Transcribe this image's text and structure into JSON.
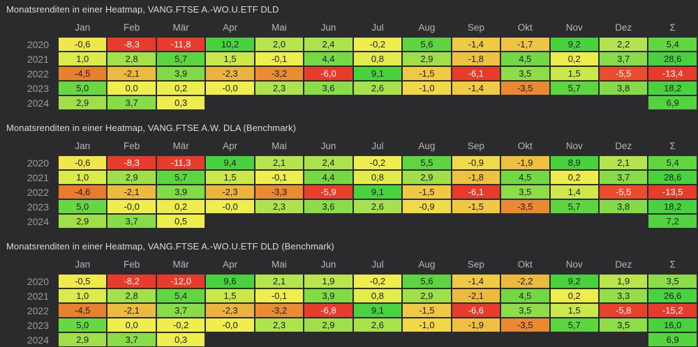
{
  "page": {
    "background": "#2b2b2d",
    "title_color": "#d9dbdd",
    "header_color": "#b4b7ba",
    "year_label_color": "#9b9da0",
    "cell_text_dark": "#1c1c1c",
    "cell_text_light": "#ffffff"
  },
  "color_scale": {
    "stops": [
      {
        "v": -6.0,
        "color": "#e73b2b"
      },
      {
        "v": -5.4,
        "color": "#ea4f2d"
      },
      {
        "v": -4.5,
        "color": "#e8812e"
      },
      {
        "v": -3.2,
        "color": "#ea8c33"
      },
      {
        "v": -2.2,
        "color": "#ecb83f"
      },
      {
        "v": -1.4,
        "color": "#f0ca45"
      },
      {
        "v": -0.9,
        "color": "#f0dc4a"
      },
      {
        "v": -0.4,
        "color": "#f0ee4e"
      },
      {
        "v": 0.6,
        "color": "#eded4d"
      },
      {
        "v": 1.1,
        "color": "#d5ea4c"
      },
      {
        "v": 1.6,
        "color": "#c9e74b"
      },
      {
        "v": 2.1,
        "color": "#b4e44e"
      },
      {
        "v": 3.0,
        "color": "#9ce04a"
      },
      {
        "v": 4.0,
        "color": "#7eda46"
      },
      {
        "v": 5.2,
        "color": "#62d641"
      },
      {
        "v": 6.5,
        "color": "#55d43f"
      },
      {
        "v": 9.0,
        "color": "#47d23e"
      }
    ],
    "white_text_max": -5.2
  },
  "chart_data": [
    {
      "type": "heatmap",
      "title": "Monatsrenditen in einer Heatmap, VANG.FTSE A.-WO.U.ETF DLD",
      "columns": [
        "Jan",
        "Feb",
        "Mär",
        "Apr",
        "Mai",
        "Jun",
        "Jul",
        "Aug",
        "Sep",
        "Okt",
        "Nov",
        "Dez",
        "Σ"
      ],
      "rows": [
        "2020",
        "2021",
        "2022",
        "2023",
        "2024"
      ],
      "values": [
        [
          "-0,6",
          "-8,3",
          "-11,8",
          "10,2",
          "2,0",
          "2,4",
          "-0,2",
          "5,6",
          "-1,4",
          "-1,7",
          "9,2",
          "2,2",
          "5,4"
        ],
        [
          "1,0",
          "2,8",
          "5,7",
          "1,5",
          "-0,1",
          "4,4",
          "0,8",
          "2,9",
          "-1,8",
          "4,5",
          "0,2",
          "3,7",
          "28,6"
        ],
        [
          "-4,5",
          "-2,1",
          "3,9",
          "-2,3",
          "-3,2",
          "-6,0",
          "9,1",
          "-1,5",
          "-6,1",
          "3,5",
          "1,5",
          "-5,5",
          "-13,4"
        ],
        [
          "5,0",
          "0,0",
          "0,2",
          "-0,0",
          "2,3",
          "3,6",
          "2,6",
          "-1,0",
          "-1,4",
          "-3,5",
          "5,7",
          "3,8",
          "18,2"
        ],
        [
          "2,9",
          "3,7",
          "0,3",
          null,
          null,
          null,
          null,
          null,
          null,
          null,
          null,
          null,
          "6,9"
        ]
      ]
    },
    {
      "type": "heatmap",
      "title": "Monatsrenditen in einer Heatmap, VANG.FTSE A.W. DLA (Benchmark)",
      "columns": [
        "Jan",
        "Feb",
        "Mär",
        "Apr",
        "Mai",
        "Jun",
        "Jul",
        "Aug",
        "Sep",
        "Okt",
        "Nov",
        "Dez",
        "Σ"
      ],
      "rows": [
        "2020",
        "2021",
        "2022",
        "2023",
        "2024"
      ],
      "values": [
        [
          "-0,6",
          "-8,3",
          "-11,3",
          "9,4",
          "2,1",
          "2,4",
          "-0,2",
          "5,5",
          "-0,9",
          "-1,9",
          "8,9",
          "2,1",
          "5,4"
        ],
        [
          "1,0",
          "2,9",
          "5,7",
          "1,5",
          "-0,1",
          "4,4",
          "0,8",
          "2,9",
          "-1,8",
          "4,5",
          "0,2",
          "3,7",
          "28,6"
        ],
        [
          "-4,6",
          "-2,1",
          "3,9",
          "-2,3",
          "-3,3",
          "-5,9",
          "9,1",
          "-1,5",
          "-6,1",
          "3,5",
          "1,4",
          "-5,5",
          "-13,5"
        ],
        [
          "5,0",
          "-0,0",
          "0,2",
          "-0,0",
          "2,3",
          "3,6",
          "2,6",
          "-0,9",
          "-1,5",
          "-3,5",
          "5,7",
          "3,8",
          "18,2"
        ],
        [
          "2,9",
          "3,7",
          "0,5",
          null,
          null,
          null,
          null,
          null,
          null,
          null,
          null,
          null,
          "7,2"
        ]
      ]
    },
    {
      "type": "heatmap",
      "title": "Monatsrenditen in einer Heatmap, VANG.FTSE A.-WO.U.ETF DLD (Benchmark)",
      "columns": [
        "Jan",
        "Feb",
        "Mär",
        "Apr",
        "Mai",
        "Jun",
        "Jul",
        "Aug",
        "Sep",
        "Okt",
        "Nov",
        "Dez",
        "Σ"
      ],
      "rows": [
        "2020",
        "2021",
        "2022",
        "2023",
        "2024"
      ],
      "values": [
        [
          "-0,5",
          "-8,2",
          "-12,0",
          "9,6",
          "2,1",
          "1,9",
          "-0,2",
          "5,6",
          "-1,4",
          "-2,2",
          "9,2",
          "1,9",
          "3,5"
        ],
        [
          "1,0",
          "2,8",
          "5,4",
          "1,5",
          "-0,1",
          "3,9",
          "0,8",
          "2,9",
          "-2,1",
          "4,5",
          "0,2",
          "3,3",
          "26,6"
        ],
        [
          "-4,5",
          "-2,1",
          "3,7",
          "-2,3",
          "-3,2",
          "-6,8",
          "9,1",
          "-1,5",
          "-6,6",
          "3,5",
          "1,5",
          "-5,8",
          "-15,2"
        ],
        [
          "5,0",
          "0,0",
          "-0,2",
          "-0,0",
          "2,3",
          "2,9",
          "2,6",
          "-1,0",
          "-1,9",
          "-3,5",
          "5,7",
          "3,5",
          "16,0"
        ],
        [
          "2,9",
          "3,7",
          "0,3",
          null,
          null,
          null,
          null,
          null,
          null,
          null,
          null,
          null,
          "6,9"
        ]
      ]
    }
  ]
}
